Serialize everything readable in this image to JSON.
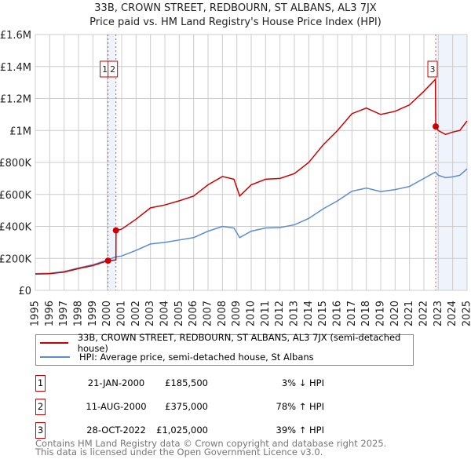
{
  "title": "33B, CROWN STREET, REDBOURN, ST ALBANS, AL3 7JX",
  "subtitle": "Price paid vs. HM Land Registry's House Price Index (HPI)",
  "chart_data": {
    "type": "line",
    "xlim": [
      1995,
      2025
    ],
    "ylim": [
      0,
      1600000
    ],
    "y_ticks": [
      {
        "v": 0,
        "label": "£0"
      },
      {
        "v": 200000,
        "label": "£200K"
      },
      {
        "v": 400000,
        "label": "£400K"
      },
      {
        "v": 600000,
        "label": "£600K"
      },
      {
        "v": 800000,
        "label": "£800K"
      },
      {
        "v": 1000000,
        "label": "£1M"
      },
      {
        "v": 1200000,
        "label": "£1.2M"
      },
      {
        "v": 1400000,
        "label": "£1.4M"
      },
      {
        "v": 1600000,
        "label": "£1.6M"
      }
    ],
    "x_ticks": [
      "1995",
      "1996",
      "1997",
      "1998",
      "1999",
      "2000",
      "2001",
      "2002",
      "2003",
      "2004",
      "2005",
      "2006",
      "2007",
      "2008",
      "2009",
      "2010",
      "2011",
      "2012",
      "2013",
      "2014",
      "2015",
      "2016",
      "2017",
      "2018",
      "2019",
      "2020",
      "2021",
      "2022",
      "2023",
      "2024",
      "2025"
    ],
    "series": [
      {
        "name": "33B, CROWN STREET, REDBOURN, ST ALBANS, AL3 7JX (semi-detached house)",
        "color": "#cc0000",
        "x": [
          1995,
          1996,
          1997,
          1998,
          1999,
          2000.05,
          2000.6,
          2000.61,
          2001,
          2002,
          2003,
          2004,
          2005,
          2006,
          2007,
          2008,
          2008.8,
          2009.2,
          2010,
          2011,
          2012,
          2013,
          2014,
          2015,
          2016,
          2017,
          2018,
          2019,
          2020,
          2021,
          2022,
          2022.8,
          2022.82,
          2023,
          2023.5,
          2024,
          2024.5,
          2025
        ],
        "y": [
          102000,
          104000,
          114000,
          136000,
          155000,
          185500,
          190000,
          375000,
          383000,
          445000,
          516000,
          534000,
          560000,
          590000,
          660000,
          712000,
          695000,
          590000,
          660000,
          695000,
          700000,
          730000,
          800000,
          910000,
          1000000,
          1105000,
          1140000,
          1100000,
          1120000,
          1160000,
          1245000,
          1320000,
          1025000,
          1000000,
          975000,
          990000,
          1000000,
          1060000
        ]
      },
      {
        "name": "HPI: Average price, semi-detached house, St Albans",
        "color": "#5b8bd0",
        "x": [
          1995,
          1996,
          1997,
          1998,
          1999,
          2000,
          2000.6,
          2001,
          2002,
          2003,
          2004,
          2005,
          2006,
          2007,
          2008,
          2008.8,
          2009.2,
          2010,
          2011,
          2012,
          2013,
          2014,
          2015,
          2016,
          2017,
          2018,
          2019,
          2020,
          2021,
          2022,
          2022.8,
          2023,
          2023.5,
          2024,
          2024.5,
          2025
        ],
        "y": [
          105000,
          107000,
          118000,
          140000,
          160000,
          190000,
          210000,
          215000,
          250000,
          290000,
          300000,
          315000,
          330000,
          370000,
          400000,
          390000,
          330000,
          370000,
          390000,
          393000,
          410000,
          450000,
          510000,
          560000,
          620000,
          640000,
          618000,
          630000,
          650000,
          700000,
          740000,
          720000,
          705000,
          710000,
          720000,
          760000
        ]
      }
    ],
    "sales": [
      {
        "id": "1",
        "x": 2000.05,
        "y": 185500,
        "date": "21-JAN-2000",
        "price": "£185,500",
        "hpi": "3% ↓ HPI"
      },
      {
        "id": "2",
        "x": 2000.6,
        "y": 375000,
        "date": "11-AUG-2000",
        "price": "£375,000",
        "hpi": "78% ↑ HPI"
      },
      {
        "id": "3",
        "x": 2022.82,
        "y": 1025000,
        "date": "28-OCT-2022",
        "price": "£1,025,000",
        "hpi": "39% ↑ HPI"
      }
    ]
  },
  "legend": {
    "red": "33B, CROWN STREET, REDBOURN, ST ALBANS, AL3 7JX (semi-detached house)",
    "blue": "HPI: Average price, semi-detached house, St Albans"
  },
  "footer": {
    "line1": "Contains HM Land Registry data © Crown copyright and database right 2025.",
    "line2": "This data is licensed under the Open Government Licence v3.0."
  }
}
